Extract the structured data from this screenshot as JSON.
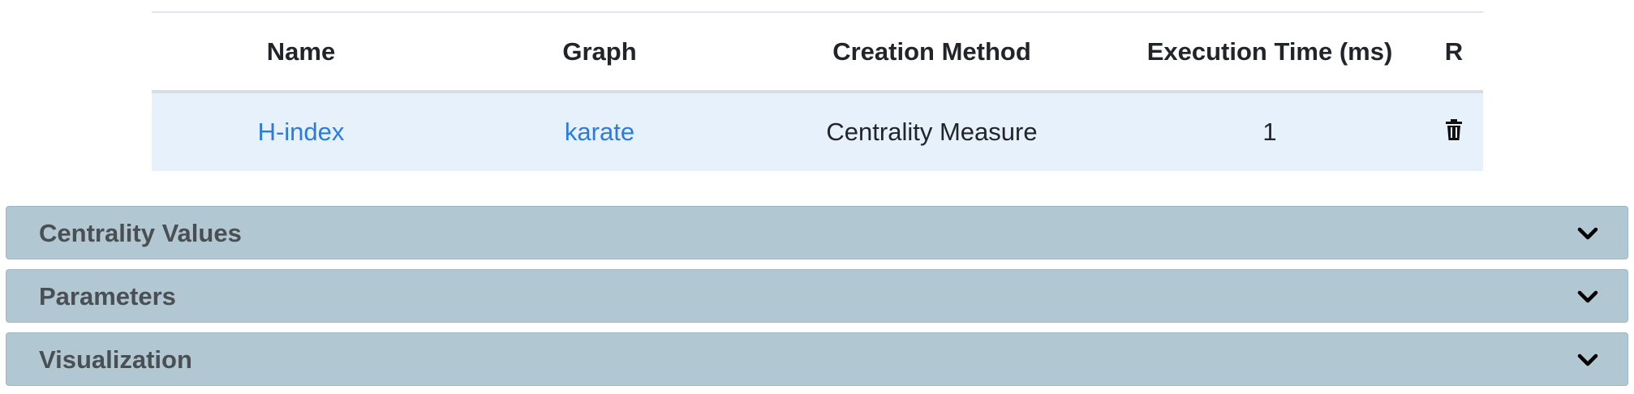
{
  "table": {
    "headers": {
      "name": "Name",
      "graph": "Graph",
      "creation_method": "Creation Method",
      "execution_time": "Execution Time (ms)",
      "r": "R"
    },
    "rows": [
      {
        "name": "H-index",
        "graph": "karate",
        "creation_method": "Centrality Measure",
        "execution_time": "1",
        "action_icon": "trash-icon"
      }
    ]
  },
  "accordions": [
    {
      "title": "Centrality Values",
      "icon": "chevron-down-icon"
    },
    {
      "title": "Parameters",
      "icon": "chevron-down-icon"
    },
    {
      "title": "Visualization",
      "icon": "chevron-down-icon"
    }
  ],
  "colors": {
    "link": "#2a7be4",
    "row_highlight": "#e6f1fb",
    "accordion_bg": "#b1c7d2",
    "accordion_text": "#4a4f54"
  }
}
